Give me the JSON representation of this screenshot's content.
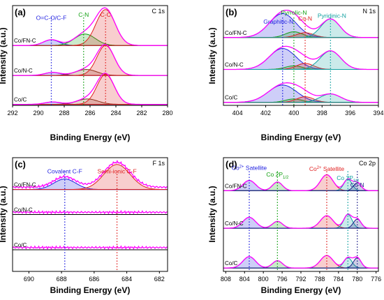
{
  "colors": {
    "magenta": "#ff00ff",
    "blue": "#2020e0",
    "green": "#12a012",
    "red": "#e02020",
    "teal": "#10a0a0",
    "navy": "#20208a",
    "brown": "#7a3a1a"
  },
  "chart_data": [
    {
      "type": "line",
      "panel_label": "(a)",
      "corner_label": "C 1s",
      "xlabel": "Binding Energy (eV)",
      "ylabel": "Intensity (a.u.)",
      "x_reversed": true,
      "xlim": [
        292,
        280
      ],
      "xticks": [
        292,
        290,
        288,
        286,
        284,
        282,
        280
      ],
      "samples": [
        "Co/FN-C",
        "Co/N-C",
        "Co/C"
      ],
      "guides": [
        {
          "x": 289.0,
          "color": "blue"
        },
        {
          "x": 286.5,
          "color": "green"
        },
        {
          "x": 284.8,
          "color": "red"
        }
      ],
      "annotations": [
        {
          "text": "O=C-O/C-F",
          "x": 289.0,
          "color": "blue"
        },
        {
          "text": "C-N",
          "x": 286.5,
          "color": "green"
        },
        {
          "text": "C-C",
          "x": 284.8,
          "color": "red"
        }
      ],
      "series": [
        {
          "name": "Co/FN-C",
          "peaks": [
            {
              "x": 289.0,
              "h": 0.16,
              "w": 0.9,
              "color": "blue"
            },
            {
              "x": 286.4,
              "h": 0.32,
              "w": 1.2,
              "color": "green"
            },
            {
              "x": 284.8,
              "h": 1.0,
              "w": 1.1,
              "color": "red"
            }
          ]
        },
        {
          "name": "Co/N-C",
          "peaks": [
            {
              "x": 288.9,
              "h": 0.1,
              "w": 0.9,
              "color": "blue"
            },
            {
              "x": 286.3,
              "h": 0.2,
              "w": 1.2,
              "color": "brown"
            },
            {
              "x": 284.8,
              "h": 1.0,
              "w": 1.0,
              "color": "red"
            }
          ]
        },
        {
          "name": "Co/C",
          "peaks": [
            {
              "x": 288.9,
              "h": 0.08,
              "w": 0.9,
              "color": "blue"
            },
            {
              "x": 286.2,
              "h": 0.18,
              "w": 1.2,
              "color": "brown"
            },
            {
              "x": 284.8,
              "h": 1.0,
              "w": 1.0,
              "color": "red"
            }
          ]
        }
      ]
    },
    {
      "type": "line",
      "panel_label": "(b)",
      "corner_label": "N 1s",
      "xlabel": "Binding Energy (eV)",
      "ylabel": "Intensity (a.u.)",
      "x_reversed": true,
      "xlim": [
        405,
        394
      ],
      "xticks": [
        404,
        402,
        400,
        398,
        396,
        394
      ],
      "samples": [
        "Co/FN-C",
        "Co/N-C",
        "Co/C"
      ],
      "guides": [
        {
          "x": 400.8,
          "color": "blue"
        },
        {
          "x": 400.0,
          "color": "green"
        },
        {
          "x": 399.2,
          "color": "red"
        },
        {
          "x": 397.4,
          "color": "teal"
        }
      ],
      "annotations": [
        {
          "text": "Graphitic-N",
          "x": 400.8,
          "color": "blue"
        },
        {
          "text": "Pyrrolic-N",
          "x": 400.0,
          "color": "green"
        },
        {
          "text": "Co-N",
          "x": 399.2,
          "color": "red"
        },
        {
          "text": "Pyridinic-N",
          "x": 397.4,
          "color": "teal"
        }
      ],
      "series": [
        {
          "name": "Co/FN-C",
          "peaks": [
            {
              "x": 400.8,
              "h": 0.75,
              "w": 1.4,
              "color": "blue"
            },
            {
              "x": 400.0,
              "h": 0.18,
              "w": 0.9,
              "color": "green"
            },
            {
              "x": 399.2,
              "h": 0.15,
              "w": 0.9,
              "color": "red"
            },
            {
              "x": 397.4,
              "h": 0.58,
              "w": 1.0,
              "color": "teal"
            }
          ]
        },
        {
          "name": "Co/N-C",
          "peaks": [
            {
              "x": 400.8,
              "h": 0.7,
              "w": 1.4,
              "color": "blue"
            },
            {
              "x": 400.0,
              "h": 0.12,
              "w": 0.9,
              "color": "green"
            },
            {
              "x": 399.2,
              "h": 0.2,
              "w": 0.9,
              "color": "red"
            },
            {
              "x": 397.4,
              "h": 0.62,
              "w": 1.1,
              "color": "teal"
            }
          ]
        },
        {
          "name": "Co/C",
          "peaks": [
            {
              "x": 400.8,
              "h": 0.62,
              "w": 1.5,
              "color": "blue"
            },
            {
              "x": 400.0,
              "h": 0.12,
              "w": 0.9,
              "color": "green"
            },
            {
              "x": 399.2,
              "h": 0.2,
              "w": 0.9,
              "color": "red"
            },
            {
              "x": 397.4,
              "h": 0.3,
              "w": 1.1,
              "color": "teal"
            }
          ]
        }
      ]
    },
    {
      "type": "line",
      "panel_label": "(c)",
      "corner_label": "F 1s",
      "xlabel": "Binding Energy (eV)",
      "ylabel": "Intensity (a.u.)",
      "x_reversed": true,
      "xlim": [
        691,
        681.5
      ],
      "xticks": [
        690,
        688,
        686,
        684,
        682
      ],
      "samples": [
        "Co/FN-C",
        "Co/N-C",
        "Co/C"
      ],
      "guides": [
        {
          "x": 687.8,
          "color": "blue"
        },
        {
          "x": 684.6,
          "color": "red"
        }
      ],
      "annotations": [
        {
          "text": "Covalent C-F",
          "x": 687.8,
          "color": "blue"
        },
        {
          "text": "Semi-ionic C-F",
          "x": 684.6,
          "color": "red"
        }
      ],
      "series": [
        {
          "name": "Co/FN-C",
          "peaks": [
            {
              "x": 687.8,
              "h": 0.42,
              "w": 1.0,
              "color": "blue"
            },
            {
              "x": 684.6,
              "h": 1.0,
              "w": 1.2,
              "color": "red"
            }
          ]
        },
        {
          "name": "Co/N-C",
          "peaks": []
        },
        {
          "name": "Co/C",
          "peaks": []
        }
      ]
    },
    {
      "type": "line",
      "panel_label": "(d)",
      "corner_label": "Co 2p",
      "xlabel": "Binding Energy (eV)",
      "ylabel": "Intensity (a.u.)",
      "x_reversed": true,
      "xlim": [
        808.5,
        775.5
      ],
      "xticks": [
        808,
        804,
        800,
        796,
        792,
        788,
        784,
        780,
        776
      ],
      "samples": [
        "Co/FN-C",
        "Co/N-C",
        "Co/C"
      ],
      "guides": [
        {
          "x": 803.0,
          "color": "blue"
        },
        {
          "x": 797.0,
          "color": "green"
        },
        {
          "x": 786.5,
          "color": "red"
        },
        {
          "x": 782.0,
          "color": "teal"
        },
        {
          "x": 780.0,
          "color": "navy"
        }
      ],
      "annotations": [
        {
          "text": "Co",
          "sup": "2+",
          "suffix": " Satellite",
          "x": 803.0,
          "color": "blue"
        },
        {
          "text": "Co 2P",
          "sub": "1/2",
          "x": 797.0,
          "color": "green"
        },
        {
          "text": "Co",
          "sup": "2+",
          "suffix": " Satellite",
          "x": 786.5,
          "color": "red"
        },
        {
          "text": "Co 2P",
          "sub": "3/2",
          "x": 782.0,
          "color": "teal"
        },
        {
          "text": "Co-N",
          "x": 780.0,
          "color": "navy"
        }
      ],
      "series": [
        {
          "name": "Co/FN-C",
          "peaks": [
            {
              "x": 803.0,
              "h": 0.45,
              "w": 2.0,
              "color": "blue"
            },
            {
              "x": 797.0,
              "h": 0.38,
              "w": 1.6,
              "color": "green"
            },
            {
              "x": 786.5,
              "h": 0.7,
              "w": 2.0,
              "color": "red"
            },
            {
              "x": 782.0,
              "h": 0.5,
              "w": 1.3,
              "color": "teal"
            },
            {
              "x": 780.0,
              "h": 0.35,
              "w": 1.2,
              "color": "navy"
            }
          ]
        },
        {
          "name": "Co/N-C",
          "peaks": [
            {
              "x": 803.0,
              "h": 0.48,
              "w": 2.0,
              "color": "blue"
            },
            {
              "x": 797.0,
              "h": 0.3,
              "w": 1.6,
              "color": "green"
            },
            {
              "x": 786.5,
              "h": 0.55,
              "w": 2.0,
              "color": "red"
            },
            {
              "x": 782.0,
              "h": 0.6,
              "w": 1.3,
              "color": "teal"
            },
            {
              "x": 780.0,
              "h": 0.4,
              "w": 1.2,
              "color": "navy"
            }
          ]
        },
        {
          "name": "Co/C",
          "peaks": [
            {
              "x": 803.0,
              "h": 0.5,
              "w": 2.0,
              "color": "blue"
            },
            {
              "x": 797.0,
              "h": 0.32,
              "w": 1.6,
              "color": "green"
            },
            {
              "x": 786.5,
              "h": 0.55,
              "w": 2.0,
              "color": "red"
            },
            {
              "x": 782.0,
              "h": 0.45,
              "w": 1.3,
              "color": "teal"
            },
            {
              "x": 780.0,
              "h": 0.45,
              "w": 1.2,
              "color": "navy"
            }
          ]
        }
      ]
    }
  ]
}
